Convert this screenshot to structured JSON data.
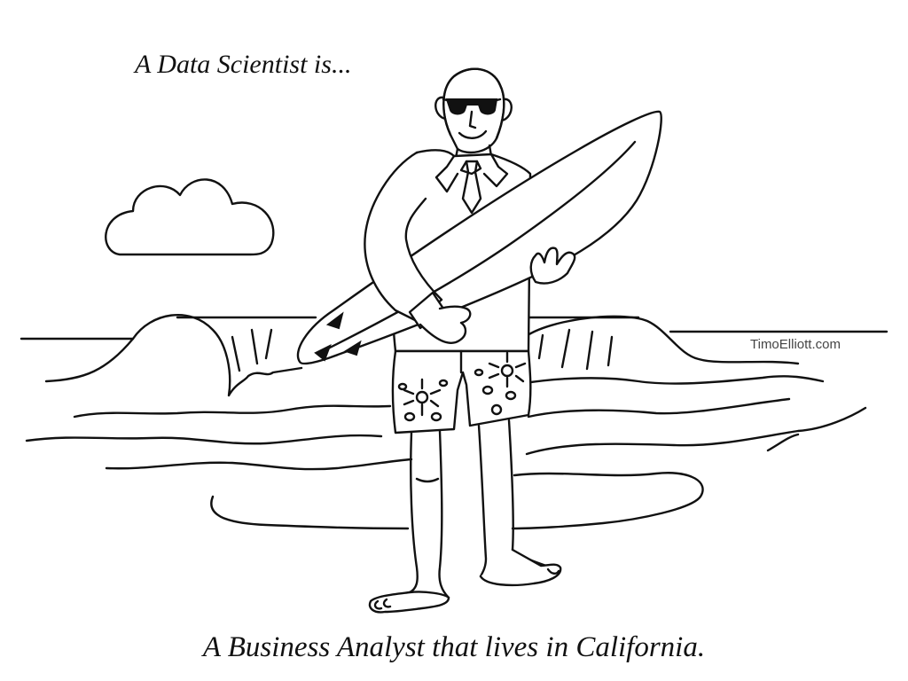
{
  "caption": {
    "top": "A Data Scientist is...",
    "bottom": "A Business Analyst that lives in California."
  },
  "credit": "TimoElliott.com"
}
